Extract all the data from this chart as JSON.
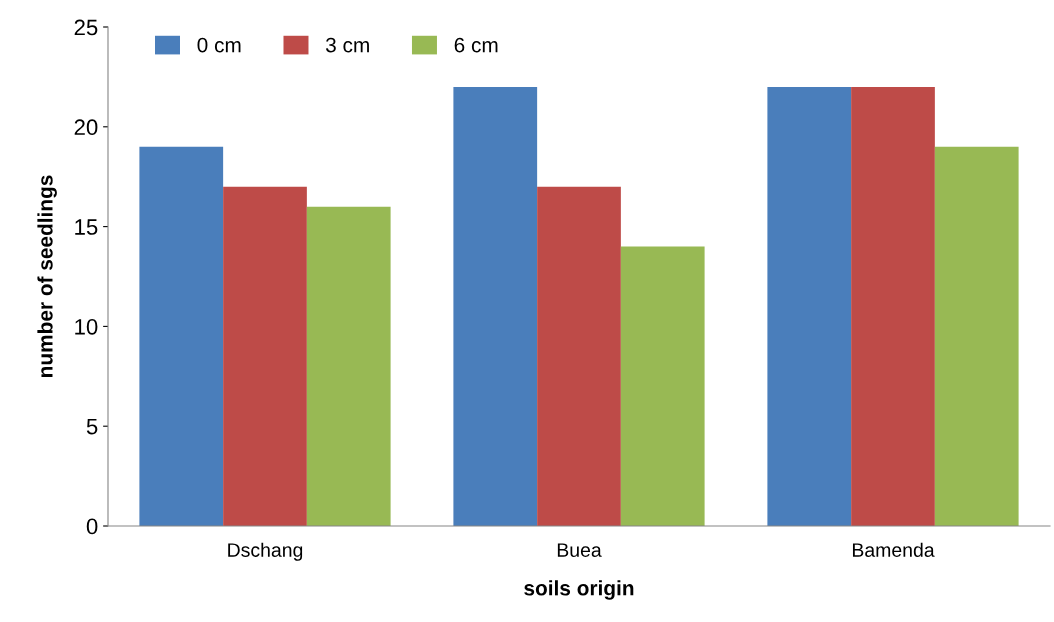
{
  "chart_data": {
    "type": "bar",
    "xlabel": "soils origin",
    "ylabel": "number of seedlings",
    "categories": [
      "Dschang",
      "Buea",
      "Bamenda"
    ],
    "series": [
      {
        "name": "0 cm",
        "color": "#4a7ebb",
        "values": [
          19,
          22,
          22
        ]
      },
      {
        "name": "3 cm",
        "color": "#be4b48",
        "values": [
          17,
          17,
          22
        ]
      },
      {
        "name": "6 cm",
        "color": "#98b954",
        "values": [
          16,
          14,
          19
        ]
      }
    ],
    "ylim": [
      0,
      25
    ],
    "yticks": [
      0,
      5,
      10,
      15,
      20,
      25
    ],
    "grid": false,
    "legend": "top left"
  }
}
